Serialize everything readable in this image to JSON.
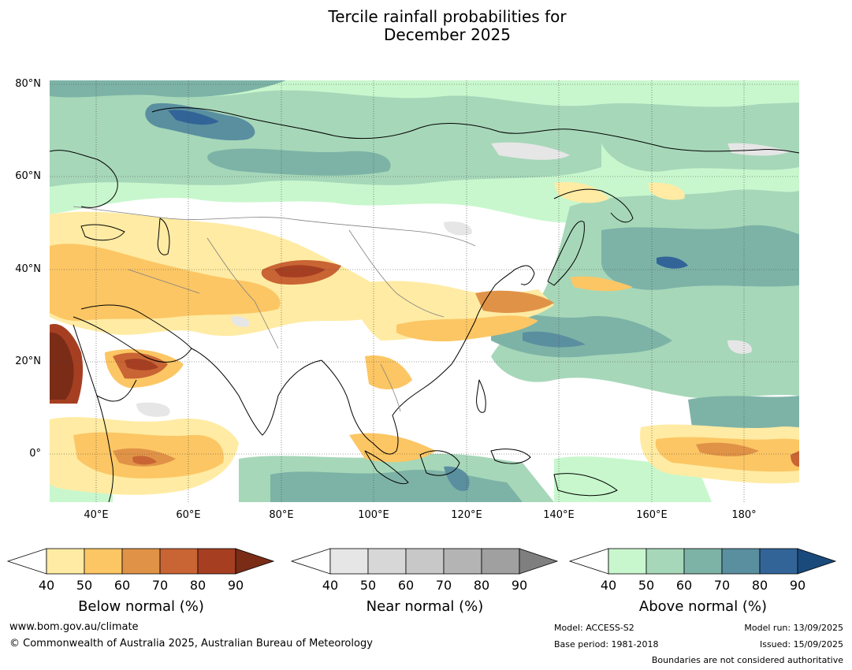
{
  "title_line1": "Tercile rainfall probabilities for",
  "title_line2": "December 2025",
  "map": {
    "lat_labels": [
      "80°N",
      "60°N",
      "40°N",
      "20°N",
      "0°"
    ],
    "lon_labels": [
      "40°E",
      "60°E",
      "80°E",
      "100°E",
      "120°E",
      "140°E",
      "160°E",
      "180°"
    ]
  },
  "legends": {
    "below": {
      "label": "Below normal (%)",
      "ticks": [
        "40",
        "50",
        "60",
        "70",
        "80",
        "90"
      ],
      "colors": [
        "#ffeba3",
        "#fcc664",
        "#e09347",
        "#c96434",
        "#a63f22",
        "#7a2c17"
      ]
    },
    "near": {
      "label": "Near normal (%)",
      "ticks": [
        "40",
        "50",
        "60",
        "70",
        "80",
        "90"
      ],
      "colors": [
        "#e6e6e6",
        "#d7d7d7",
        "#c8c8c8",
        "#b4b4b4",
        "#a0a0a0",
        "#7f7f7f"
      ]
    },
    "above": {
      "label": "Above normal (%)",
      "ticks": [
        "40",
        "50",
        "60",
        "70",
        "80",
        "90"
      ],
      "colors": [
        "#c8f7cd",
        "#a6d7b9",
        "#7db3a6",
        "#5a8fa0",
        "#326498",
        "#1a4a7c"
      ]
    }
  },
  "footer": {
    "website": "www.bom.gov.au/climate",
    "copyright": "© Commonwealth of Australia 2025, Australian Bureau of Meteorology",
    "model": "Model: ACCESS-S2",
    "base_period": "Base period: 1981-2018",
    "model_run": "Model run: 13/09/2025",
    "issued": "Issued: 15/09/2025",
    "disclaimer": "Boundaries are not considered authoritative"
  }
}
